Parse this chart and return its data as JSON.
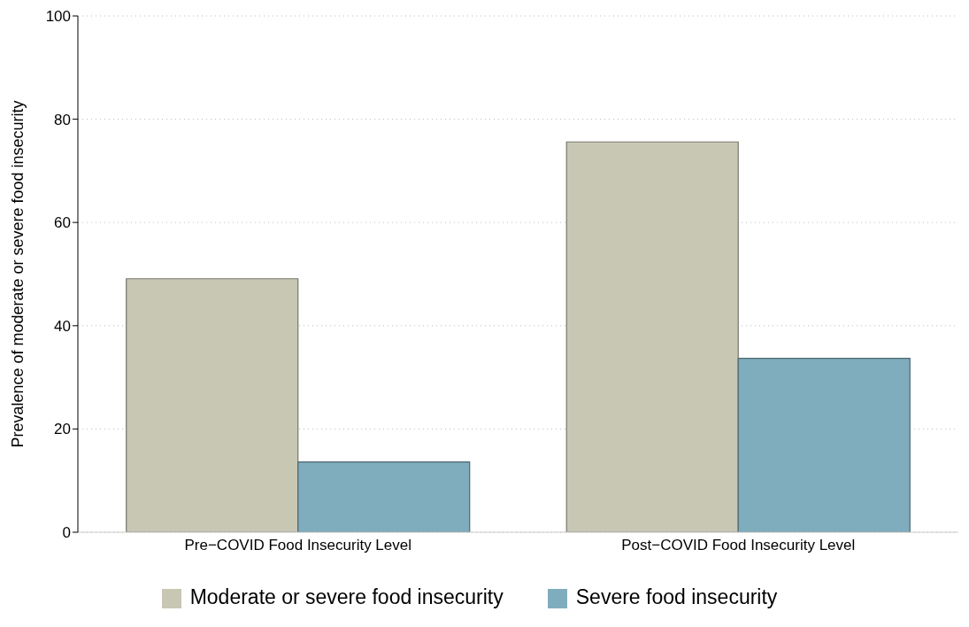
{
  "chart_data": {
    "type": "bar",
    "ylabel": "Prevalence of moderate or severe food insecurity",
    "categories": [
      "Pre−COVID Food Insecurity Level",
      "Post−COVID Food Insecurity Level"
    ],
    "series": [
      {
        "name": "Moderate or severe food insecurity",
        "color": "#c8c7b4",
        "values": [
          49.1,
          75.6
        ]
      },
      {
        "name": "Severe food insecurity",
        "color": "#80adbe",
        "values": [
          13.6,
          33.7
        ]
      }
    ],
    "ylim": [
      0,
      100
    ],
    "yticks": [
      0,
      20,
      40,
      60,
      80,
      100
    ],
    "grid": "y",
    "legend": "bottom"
  }
}
